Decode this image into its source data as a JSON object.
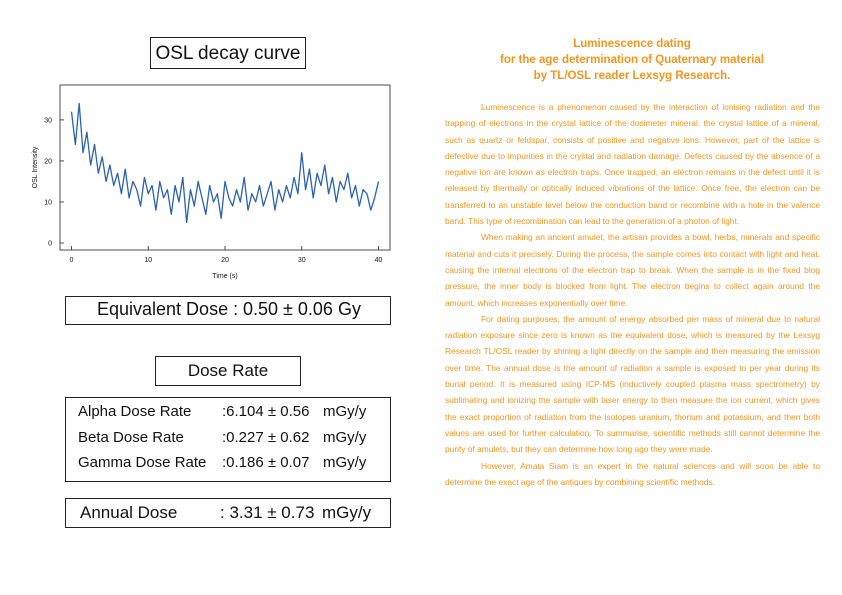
{
  "chart_data": {
    "type": "line",
    "title": "OSL decay curve",
    "x_label": "Time (s)",
    "y_label": "OSL Intensity",
    "x": [
      0,
      0.5,
      1,
      1.5,
      2,
      2.5,
      3,
      3.5,
      4,
      4.5,
      5,
      5.5,
      6,
      6.5,
      7,
      7.5,
      8,
      8.5,
      9,
      9.5,
      10,
      10.5,
      11,
      11.5,
      12,
      12.5,
      13,
      13.5,
      14,
      14.5,
      15,
      15.5,
      16,
      16.5,
      17,
      17.5,
      18,
      18.5,
      19,
      19.5,
      20,
      20.5,
      21,
      21.5,
      22,
      22.5,
      23,
      23.5,
      24,
      24.5,
      25,
      25.5,
      26,
      26.5,
      27,
      27.5,
      28,
      28.5,
      29,
      29.5,
      30,
      30.5,
      31,
      31.5,
      32,
      32.5,
      33,
      33.5,
      34,
      34.5,
      35,
      35.5,
      36,
      36.5,
      37,
      37.5,
      38,
      38.5,
      39,
      39.5,
      40
    ],
    "values": [
      32,
      24,
      34,
      22,
      27,
      19,
      24,
      17,
      21,
      15,
      19,
      14,
      17,
      12,
      18,
      11,
      15,
      13,
      9,
      16,
      12,
      14,
      8,
      15,
      11,
      13,
      7,
      14,
      10,
      16,
      5,
      13,
      9,
      15,
      11,
      7,
      14,
      10,
      12,
      6,
      15,
      11,
      9,
      13,
      10,
      16,
      8,
      12,
      10,
      14,
      9,
      12,
      15,
      8,
      13,
      10,
      14,
      11,
      16,
      12,
      22,
      13,
      18,
      11,
      17,
      14,
      19,
      12,
      16,
      10,
      15,
      13,
      17,
      11,
      14,
      9,
      13,
      12,
      8,
      11,
      15
    ],
    "color": "#2a62b0",
    "xlim": [
      -1.5,
      41.5
    ],
    "ylim": [
      -1.7,
      38.5
    ],
    "xticks": [
      0,
      10,
      20,
      30,
      40
    ],
    "yticks": [
      0,
      10,
      20,
      30
    ]
  },
  "equivalent_dose": {
    "label": "Equivalent Dose :",
    "value": "0.50 ± 0.06 Gy"
  },
  "dose_rate": {
    "title": "Dose Rate",
    "rows": [
      {
        "label": "Alpha Dose Rate",
        "value": ":6.104 ± 0.56",
        "unit": "mGy/y"
      },
      {
        "label": "Beta Dose Rate",
        "value": ":0.227 ± 0.62",
        "unit": "mGy/y"
      },
      {
        "label": "Gamma Dose Rate",
        "value": ":0.186 ± 0.07",
        "unit": "mGy/y"
      }
    ]
  },
  "annual_dose": {
    "label": "Annual Dose",
    "value": ": 3.31 ± 0.73",
    "unit": "mGy/y"
  },
  "article": {
    "title": [
      "Luminescence dating",
      "for the age determination of Quaternary material",
      "by TL/OSL reader Lexsyg Research."
    ],
    "paragraphs": [
      "Luminescence is a phenomenon caused by the interaction of ionising radiation and the trapping of electrons in the crystal lattice of the dosimeter mineral. the crystal lattice of a mineral, such as quartz or feldspar, consists of positive and negative ions. However, part of the lattice is defective due to impurities in the crystal and radiation damage. Defects caused by the absence of a negative ion are known as electron traps. Once trapped, an electron remains in the defect until it is released by thermally or optically induced vibrations of the lattice. Once free, the electron can be transferred to an unstable level below the conduction band or recombine with a hole in the valence band. This type of recombination can lead to the generation of a photon of light.",
      "When making an ancient amulet, the artisan provides a bowl, herbs, minerals and specific material and cuts it precisely. During the process, the sample comes into contact with light and heat, causing the internal electrons of the electron trap to break. When the sample is in the fixed blog pressure, the inner body is blocked from light. The electron begins to collect again around the amount, which increases exponentially over time.",
      "For dating purposes, the amount of energy absorbed per mass of mineral due to natural radiation exposure since zero is known as the equivalent dose, which is measured by the Lexsyg Research TL/OSL reader by shining a light directly on the sample and then measuring the emission over time. The annual dose is the amount of radiation a sample is exposed to per year during its burial period. It is measured using ICP-MS (inductively coupled plasma mass spectrometry) by sublimating and ionizing the sample with laser energy to then measure the ion current, which gives the exact proportion of radiation from the isotopes uranium, thorium and potassium, and then both values are used for further calculation. To summarise, scientific methods still cannot determine the purity of amulets, but they can determine how long ago they were made.",
      "However, Amata Siam is an expert in the natural sciences and will soon be able to determine the exact age of the antiques by combining scientific methods."
    ]
  }
}
